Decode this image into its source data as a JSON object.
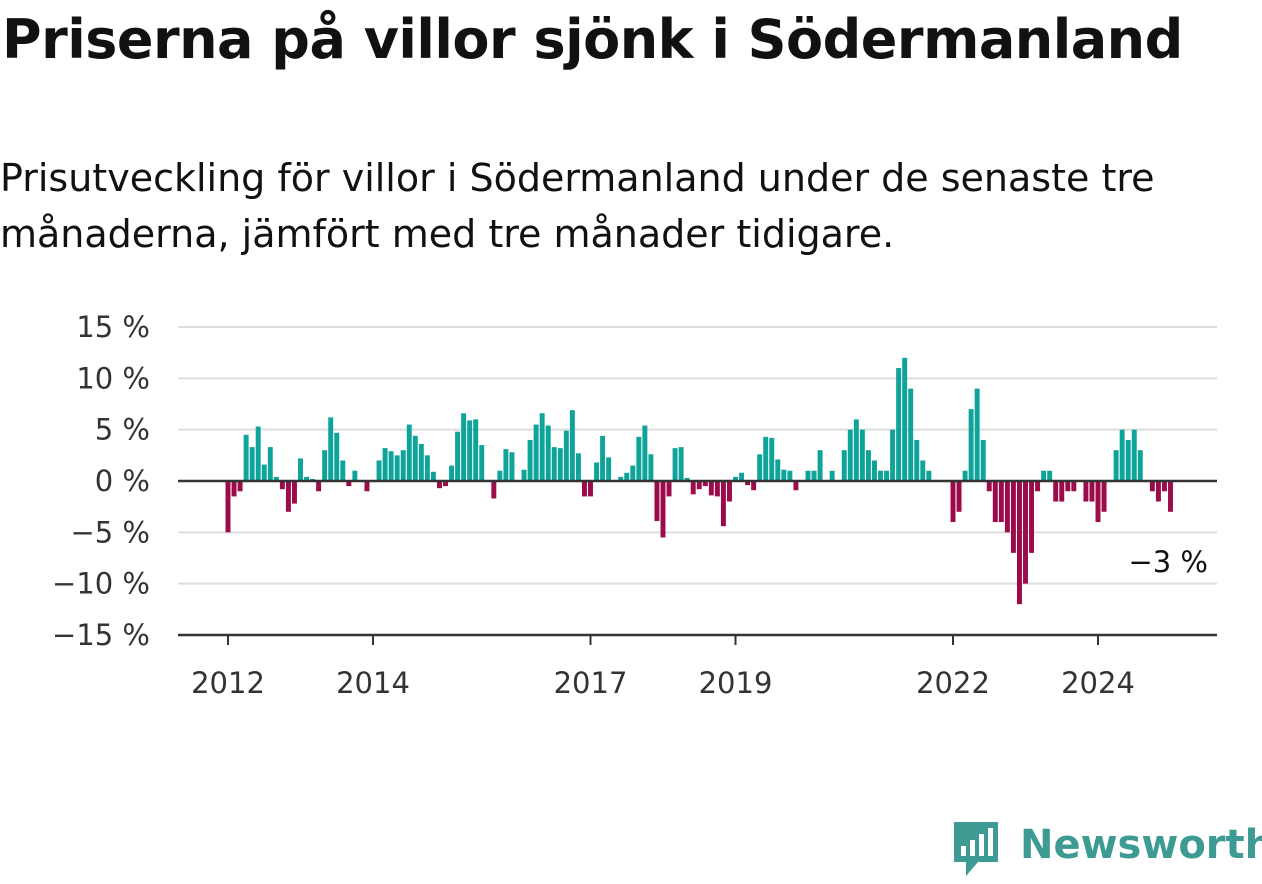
{
  "title": "Priserna på villor sjönk i Södermanland",
  "subtitle": "Prisutveckling för villor i Södermanland under de senaste tre månaderna, jämfört med tre månader tidigare.",
  "logo": {
    "text": "Newsworthy",
    "icon": "newsworthy-chart-icon"
  },
  "colors": {
    "positive": "#0ea49a",
    "negative": "#9c0b4a",
    "grid": "#dddddd",
    "axis": "#333333"
  },
  "chart_data": {
    "type": "bar",
    "ylim": [
      -15,
      15
    ],
    "y_ticks": [
      15,
      10,
      5,
      0,
      -5,
      -10,
      -15
    ],
    "y_tick_labels": [
      "15 %",
      "10 %",
      "5 %",
      "0 %",
      "−5 %",
      "−10 %",
      "−15 %"
    ],
    "x_ticks": [
      "2012",
      "2014",
      "2017",
      "2019",
      "2022",
      "2024"
    ],
    "unit": "%",
    "start": "2012-01",
    "last_value_label": "−3 %",
    "values": [
      -5,
      -1.5,
      -1,
      4.5,
      3.3,
      5.3,
      1.6,
      3.3,
      0.4,
      -0.8,
      -3,
      -2.2,
      2.2,
      0.4,
      0.2,
      -1,
      3,
      6.2,
      4.7,
      2,
      -0.5,
      1,
      0,
      -1,
      0,
      2,
      3.2,
      2.9,
      2.5,
      3,
      5.5,
      4.4,
      3.6,
      2.5,
      0.9,
      -0.7,
      -0.5,
      1.5,
      4.8,
      6.6,
      5.9,
      6,
      3.5,
      0,
      -1.7,
      1,
      3.1,
      2.8,
      0,
      1.1,
      4,
      5.5,
      6.6,
      5.4,
      3.3,
      3.2,
      4.9,
      6.9,
      2.7,
      -1.5,
      -1.5,
      1.8,
      4.4,
      2.3,
      0,
      0.4,
      0.8,
      1.5,
      4.3,
      5.4,
      2.6,
      -3.9,
      -5.5,
      -1.5,
      3.2,
      3.3,
      0.3,
      -1.3,
      -0.8,
      -0.5,
      -1.4,
      -1.5,
      -4.4,
      -2,
      0.4,
      0.8,
      -0.4,
      -0.9,
      2.6,
      4.3,
      4.2,
      2.1,
      1.1,
      1,
      -0.9,
      0,
      1,
      1,
      3,
      0,
      1,
      0,
      3,
      5,
      6,
      5,
      3,
      2,
      1,
      1,
      5,
      11,
      12,
      9,
      4,
      2,
      1,
      0,
      0,
      0,
      -4,
      -3,
      1,
      7,
      9,
      4,
      -1,
      -4,
      -4,
      -5,
      -7,
      -12,
      -10,
      -7,
      -1,
      1,
      1,
      -2,
      -2,
      -1,
      -1,
      0,
      -2,
      -2,
      -4,
      -3,
      0,
      3,
      5,
      4,
      5,
      3,
      0,
      -1,
      -2,
      -1,
      -3
    ]
  }
}
